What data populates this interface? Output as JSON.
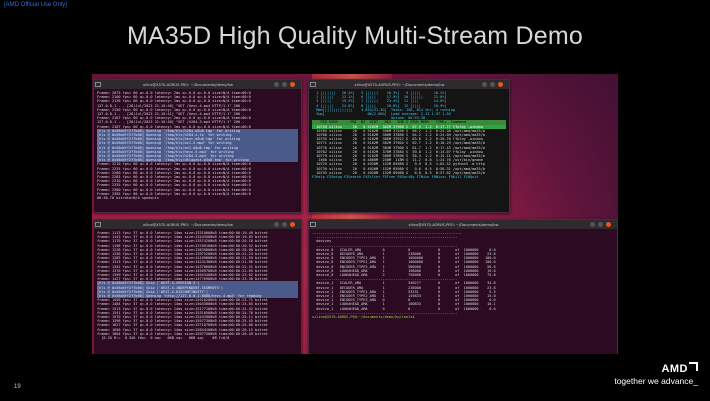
{
  "corner_tag": "[AMD Official Use Only]",
  "slide_title": "MA35D High Quality Multi-Stream Demo",
  "page_number": "19",
  "brand": {
    "logo": "AMD",
    "slogan": "together we advance_"
  },
  "windows": {
    "top_left": {
      "title": "xilinx@X570-AORUS-PRO: ~/Documents/demo/hw",
      "lines": [
        "Frame= 2075 fps= 60 q=-0.0 latency= 2ms q=-0.0 q=-0.0 size=N/A time=00:0",
        "Frame= 2100 fps= 60 q=-0.0 latency= 1ms q=-0.0 q=-0.0 size=N/A time=00:0",
        "Frame= 2126 fps= 60 q=-0.0 latency= 1ms q=-0.0 q=-0.0 size=N/A time=00:0",
        "127.0.0.1 - - [26/Jul/2023 21:16:40] \"GET /hevc-4.mp4 HTTP/1.1\" 200 -",
        "Frame= 2150 fps= 60 q=-0.0 latency= 1ms q=-0.0 q=-0.0 size=N/A time=00:0",
        "127.0.0.1 - - [26/Jul/2023 21:16:41] \"GET /hevc-4.mp4 HTTP/1.1\" 200 -",
        "Frame= 2167 fps= 60 q=-0.0 latency= 2ms q=-0.0 q=-0.0 size=N/A time=00:0",
        "127.0.0.1 - - [26/Jul/2023 21:16:40] \"GET /h264-3.mp4 HTTP/1.1\" 200 -",
        "Frame= 2187 fps= 60 q=-0.0 latency= 1ms q=-0.0 q=-0.0 size=N/A time=00:0",
        "[hls @ 0x56d4ff2f7b00] Opening '/tmp/hls/h264.m3u8.tmp' for writing",
        "[hls @ 0x56d4ff2f7b00] Opening '/tmp/hls/h264-4.ts' for writing",
        "[hls @ 0x56d4ff2f7b00] Opening '/tmp/hls/hevc.m3u8.tmp' for writing",
        "[hls @ 0x56d4ff2f7b00] Opening '/tmp/hls/av1-5.mp4' for writing",
        "[hls @ 0x56d4ff2f7b00] Opening '/tmp/hls/av1.m3u8.tmp' for writing",
        "[hls @ 0x56d4ff2f7b00] Opening '/tmp/hls/hevc-5.mp4' for writing",
        "[hls @ 0x56d4ff2f7b00] Opening '/tmp/hls/h264-5.mp4' for writing",
        "[hls @ 0x56d4ff2f7b00] Opening '/tmp/hls/dhlquest.m3u8.tmp' for writing",
        "Frame= 2210 fps= 60 q=-0.0 latency= 1ms q=-0.0 q=-0.0 size=N/A time=00:0",
        "Frame= 2235 fps= 60 q=-0.0 latency= 2ms q=-0.0 q=-0.0 size=N/A time=00:0",
        "Frame= 2260 fps= 60 q=-0.0 latency= 1ms q=-0.0 q=-0.0 size=N/A time=00:0",
        "Frame= 2285 fps= 60 q=-0.0 latency= 1ms q=-0.0 q=-0.0 size=N/A time=00:0",
        "Frame= 2310 fps= 60 q=-0.0 latency= 2ms q=-0.0 q=-0.0 size=N/A time=00:0",
        "Frame= 2335 fps= 60 q=-0.0 latency= 1ms q=-0.0 q=-0.0 size=N/A time=00:0",
        "Frame= 2360 fps= 60 q=-0.0 latency= 1ms q=-0.0 q=-0.0 size=N/A time=00:0",
        "Frame= 2385 fps= 60 q=-0.0 latency= 1ms q=-0.0 q=-0.0 size=N/A time=00:0",
        "00:38.76 bitrate=N/A speed=1x"
      ]
    },
    "top_right": {
      "title": "xilinx@X570-AORUS-PRO: ~/Documents/demo/hw",
      "meter_lines": [
        "  1 [||||||   26.4%]   5 [|||||    20.3%]   9 [||||      18.2%]",
        "  2 [|||||    22.1%]   6 [||||     17.9%]  10 [|||||     21.0%]",
        "  3 [||||     19.5%]   7 [|||||    23.4%]  11 [|||       14.6%]",
        "  4 [|||||    24.8%]   8 [||||     18.8%]  12 [||||      16.9%]",
        "  Mem[|||||||||||||    4.61G/31.3G]  Tasks: 158, 614 thr; 4 running",
        "  Swp[                    0K/2.00G]  Load average: 2.13 1.97 1.84",
        "                                     Uptime: 00:53:30"
      ],
      "header": "    PID USER      PRI  NI  VIRT   RES   SHR S CPU% MEM%   TIME+  Command",
      "rows": [
        "  10749 xilinx     20   0 5162M  382M 37908 S  67.3  1.2  6:17.77 ffplay -window",
        "  10765 xilinx     20   0 5162M  396M 37936 S  66.2  1.2  6:24.30 /opt/amd/ma35/b",
        "  10768 xilinx     20   0 5162M  380M 37880 S  64.2  1.2  6:24.09 /opt/amd/ma35/b",
        "  10755 xilinx     20   0 5162M  386M 37912 S  63.0  1.2  6:20.70 ffplay -window",
        "  10771 xilinx     20   0 5162M  382M 37904 S  62.7  1.2  6:18.29 /opt/amd/ma35/b",
        "  10776 xilinx     20   0 5162M  384M 37900 S  61.7  1.2  6:17.43 /opt/amd/ma35/b",
        "  10762 xilinx     20   0 5162M  378M 37884 S  59.8  1.2  6:14.07 ffplay -window",
        "  10779 xilinx     20   0 5162M  380M 37896 S  58.4  1.2  6:15.11 /opt/amd/ma35/b",
        "   2460 xilinx     20   0 4866M  258M  118M S  11.2  0.8  1:24.70 /usr/bin/gnome",
        "  10729 xilinx     20   0 4920M  152M 65980 S   9.9  0.5  1:02.52 python3 -m http",
        "  10739 xilinx     20   0 4920M  152M 65980 S   9.6  0.5  0:58.31 /opt/amd/ma35/b",
        "  10745 xilinx     20   0 4920M  152M 65980 S   8.8  0.5  0:57.02 /opt/amd/ma35/b"
      ],
      "footer": "F1Help F2Setup F3Search F4Filter F5Tree F6SortBy F7Nice F8Nice+ F9Kill F10Quit"
    },
    "bottom_left": {
      "title": "xilinx@X570-AORUS-PRO: ~/Documents/demo/hw",
      "lines": [
        "frame= 1113 fps= 37 q=-0.0 latency= 14ms size=13310000kB time=00:00:19.49 bitrat",
        "frame= 1142 fps= 37 q=-0.0 latency= 14ms size=13443500kB time=00:00:19.83 bitrat",
        "frame= 1170 fps= 37 q=-0.0 latency= 14ms size=13574200kB time=00:00:20.18 bitrat",
        "frame= 1198 fps= 37 q=-0.0 latency= 14ms size=13709100kB time=00:00:20.52 bitrat",
        "frame= 1228 fps= 37 q=-0.0 latency= 14ms size=13839800kB time=00:00:20.90 bitrat",
        "frame= 1256 fps= 37 q=-0.0 latency= 14ms size=13975200kB time=00:00:21.24 bitrat",
        "frame= 1285 fps= 37 q=-0.0 latency= 14ms size=14109000kB time=00:00:21.59 bitrat",
        "frame= 1313 fps= 37 q=-0.0 latency= 14ms size=14241300kB time=00:00:21.96 bitrat",
        "frame= 1342 fps= 37 q=-0.0 latency= 14ms size=14376600kB time=00:00:22.31 bitrat",
        "frame= 1370 fps= 37 q=-0.0 latency= 14ms size=14509700kB time=00:00:22.65 bitrat",
        "frame= 1399 fps= 37 q=-0.0 latency= 14ms size=14643400kB time=00:00:23.02 bitrat",
        "frame= 1427 fps= 37 q=-0.0 latency= 14ms size=14776900kB time=00:00:23.36 bitrat",
        "[hls @ 0x56d4ff2f7b00] Skip ('#EXT-X-VERSION:3')",
        "[hls @ 0x56d4ff2f7b00] Skip ('#EXT-X-INDEPENDENT-SEGMENTS')",
        "[hls @ 0x56d4ff2f7b00] Skip ('#EXT-X-DISCONTINUITY')",
        "[hls @ 0x56d4ff2f7b00] Opening 'http://127.0.0.1:8080/hevc-4.mp4' for reading",
        "frame= 1456 fps= 37 q=-0.0 latency= 14ms size=14910200kB time=00:00:23.71 bitrat",
        "frame= 1484 fps= 37 q=-0.0 latency= 14ms size=15043800kB time=00:00:24.05 bitrat",
        "frame= 1513 fps= 37 q=-0.0 latency= 14ms size=15177100kB time=00:00:24.42 bitrat",
        "frame= 1541 fps= 37 q=-0.0 latency= 14ms size=15310500kB time=00:00:24.76 bitrat",
        "frame= 1570 fps= 37 q=-0.0 latency= 14ms size=15443900kB time=00:00:25.11 bitrat",
        "frame= 1598 fps= 37 q=-0.0 latency= 14ms size=15577300kB time=00:00:25.45 bitrat",
        "frame= 1627 fps= 37 q=-0.0 latency= 14ms size=15710700kB time=00:00:25.80 bitrat",
        "frame= 1656 fps= 37 q=-0.0 latency= 14ms size=15844100kB time=00:00:26.15 bitrat",
        "frame= 1684 fps= 37 q=-0.0 latency= 14ms size=15977500kB time=00:00:26.49 bitrat",
        "  [0.3G M:=  0.340 fds=  0 aq=   0KB vq=   0KB sq=    0B f=0/0"
      ]
    },
    "bottom_right": {
      "title": "xilinx@X570-AORUS-PRO: ~/Documents/demo/hw",
      "lines": [
        "----------------------------------------------------------------------",
        "  ------------------------------------------------------------------",
        "  devices",
        "  ------------------------------------------------------------------",
        "  device_0   SCALER_AMA          0           0             0       of  1000000     0.0",
        "  device_0   DECODER_AMA         1           238000        0       of  1000000    23.8",
        "  device_0   ENCODER_TYPE1_AMA   1           1000000       0       of  1000000   100.0",
        "  device_0   ENCODER_TYPE2_AMA   1           1000000       0       of  1000000   100.0",
        "  device_0   ENCODER_TYPE3_AMA   1           586000        0       of  1000000    58.6",
        "  device_0   LOOKAHEAD_AMA       1           198000        0       of  1000000    19.8",
        "  device_0   LOOKAHEAD_AMA       2           758000        0       of  1000000    75.8",
        "  ------------------------------------------------------------------",
        "",
        "  device_1   SCALER_AMA          1           348277        0       of  1000000    34.8",
        "  device_1   DECODER_AMA         1           238000        0       of  1000000    23.8",
        "  device_1   ENCODER_TYPE1_AMA   1           53331         0       of  1000000     5.3",
        "  device_1   ENCODER_TYPE2_AMA   1           149833        0       of  1000000    15.0",
        "  device_1   ENCODER_TYPE3_AMA   0           0             0       of  1000000     0.0",
        "  device_1   LOOKAHEAD_AMA       1           100833        0       of  1000000    10.1",
        "  device_1   LOOKAHEAD_AMA       0           0             0       of  1000000     0.0",
        "  ------------------------------------------------------------------",
        "",
        "xilinx@X570-AORUS-PRO:~/Documents/demo/hw/tools$ "
      ]
    }
  }
}
